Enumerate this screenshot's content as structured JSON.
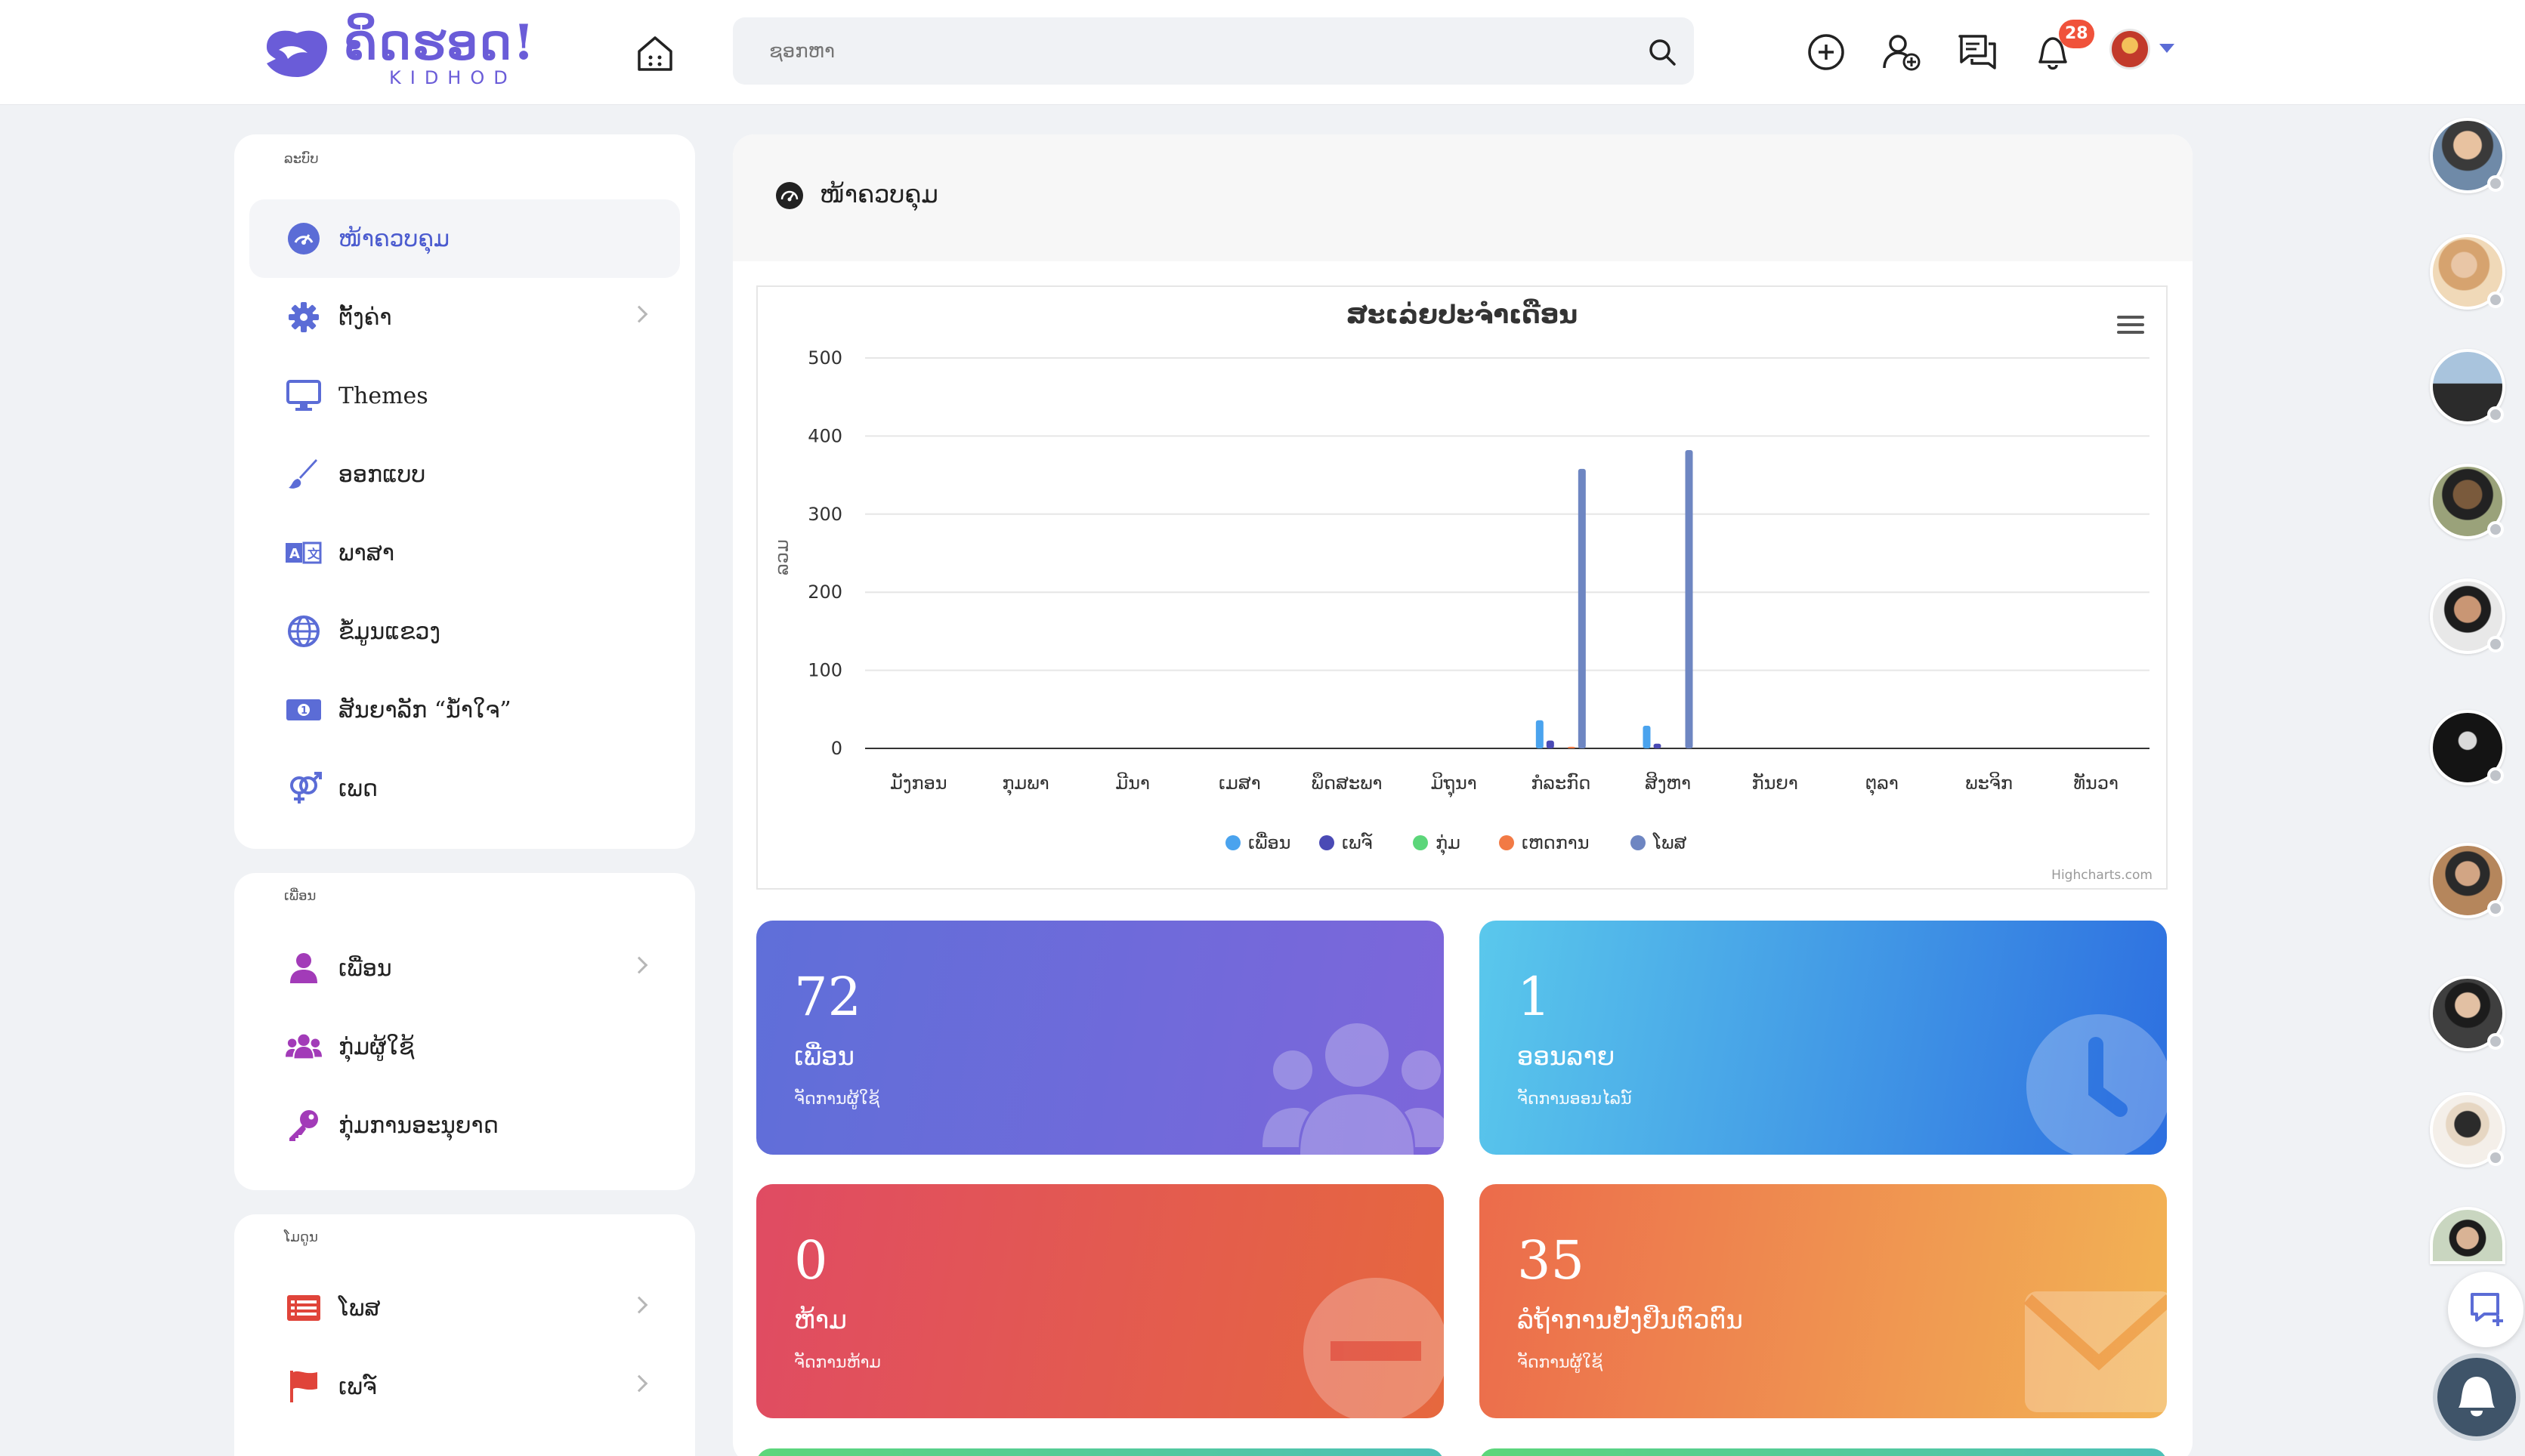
{
  "header": {
    "logo_main": "ຄິດຮອດ!",
    "logo_sub": "KIDHOD",
    "search_placeholder": "ຊອກຫາ",
    "notification_count": "28"
  },
  "sidebar": {
    "sections": [
      {
        "heading": "ລະບົບ",
        "items": [
          {
            "label": "ໜ້າຄວບຄຸມ",
            "icon": "dashboard-icon",
            "active": true,
            "chevron": false
          },
          {
            "label": "ຕັ້ງຄ່າ",
            "icon": "gear-icon",
            "active": false,
            "chevron": true
          },
          {
            "label": "Themes",
            "icon": "monitor-icon",
            "active": false,
            "chevron": false
          },
          {
            "label": "ອອກແບບ",
            "icon": "brush-icon",
            "active": false,
            "chevron": false
          },
          {
            "label": "ພາສາ",
            "icon": "translate-icon",
            "active": false,
            "chevron": false
          },
          {
            "label": "ຂໍ້ມູນແຂວງ",
            "icon": "globe-icon",
            "active": false,
            "chevron": false
          },
          {
            "label": "ສັນຍາລັກ “ນ້ຳໃຈ”",
            "icon": "money-icon",
            "active": false,
            "chevron": false
          },
          {
            "label": "ເພດ",
            "icon": "gender-icon",
            "active": false,
            "chevron": false
          }
        ]
      },
      {
        "heading": "ເພື່ອນ",
        "items": [
          {
            "label": "ເພື່ອນ",
            "icon": "user-icon",
            "active": false,
            "chevron": true
          },
          {
            "label": "ກຸ່ມຜູ້ໃຊ້",
            "icon": "users-icon",
            "active": false,
            "chevron": false
          },
          {
            "label": "ກຸ່ມການອະນຸຍາດ",
            "icon": "key-icon",
            "active": false,
            "chevron": false
          }
        ]
      },
      {
        "heading": "ໂມດູນ",
        "items": [
          {
            "label": "ໂພສ",
            "icon": "list-icon",
            "active": false,
            "chevron": true
          },
          {
            "label": "ເພຈ໌",
            "icon": "flag-icon",
            "active": false,
            "chevron": true
          }
        ]
      }
    ]
  },
  "main": {
    "title": "ໜ້າຄວບຄຸມ"
  },
  "chart_data": {
    "type": "bar",
    "title": "ສະເລ່ຍປະຈຳເດືອນ",
    "ylabel": "ລວມ",
    "xlabel": "",
    "ylim": [
      0,
      500
    ],
    "yticks": [
      0,
      100,
      200,
      300,
      400,
      500
    ],
    "categories": [
      "ມັງກອນ",
      "ກຸມພາ",
      "ມີນາ",
      "ເມສາ",
      "ພຶດສະພາ",
      "ມິຖຸນາ",
      "ກໍລະກົດ",
      "ສິງຫາ",
      "ກັນຍາ",
      "ຕຸລາ",
      "ພະຈິກ",
      "ທັນວາ"
    ],
    "series": [
      {
        "name": "ເພື່ອນ",
        "color": "#4aa3ee",
        "values": [
          0,
          0,
          0,
          0,
          0,
          0,
          36,
          29,
          0,
          0,
          0,
          0
        ]
      },
      {
        "name": "ເພຈ໌",
        "color": "#4a4ab5",
        "values": [
          0,
          0,
          0,
          0,
          0,
          0,
          10,
          6,
          0,
          0,
          0,
          0
        ]
      },
      {
        "name": "ກຸ່ມ",
        "color": "#5cd67a",
        "values": [
          0,
          0,
          0,
          0,
          0,
          0,
          0,
          0,
          0,
          0,
          0,
          0
        ]
      },
      {
        "name": "ເຫດການ",
        "color": "#f27a45",
        "values": [
          0,
          0,
          0,
          0,
          0,
          0,
          2,
          0,
          0,
          0,
          0,
          0
        ]
      },
      {
        "name": "ໂພສ",
        "color": "#6e86c2",
        "values": [
          0,
          0,
          0,
          0,
          0,
          0,
          358,
          382,
          0,
          0,
          0,
          0
        ]
      }
    ],
    "credits": "Highcharts.com",
    "grid": true,
    "legend": "bottom-center"
  },
  "stats": [
    {
      "value": "72",
      "title": "ເພື່ອນ",
      "sub": "ຈັດການຜູ້ໃຊ້",
      "icon": "users-icon"
    },
    {
      "value": "1",
      "title": "ອອນລາຍ",
      "sub": "ຈັດການອອນໄລນ໌",
      "icon": "clock-icon"
    },
    {
      "value": "0",
      "title": "ຫ້າມ",
      "sub": "ຈັດການຫ້າມ",
      "icon": "minus-circle-icon"
    },
    {
      "value": "35",
      "title": "ລໍຖ້າການຢັ້ງຢືນຕົວຕົນ",
      "sub": "ຈັດການຜູ້ໃຊ້",
      "icon": "envelope-icon"
    }
  ],
  "colors": {
    "accent": "#5b6cd6",
    "card_purple": [
      "#5f6fd9",
      "#7d66da"
    ],
    "card_blue": [
      "#5ac8ec",
      "#2d6fe0"
    ],
    "card_red": [
      "#e04b63",
      "#e6683e"
    ],
    "card_orange": [
      "#ec6b4b",
      "#f2b455"
    ]
  }
}
